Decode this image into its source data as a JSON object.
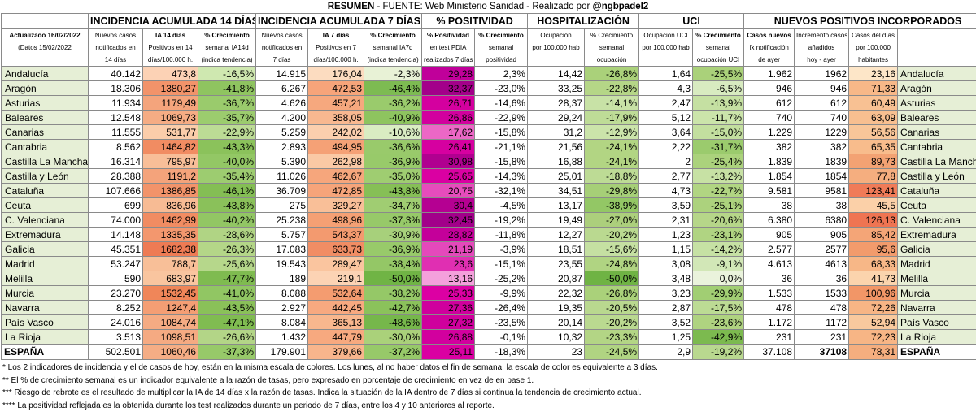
{
  "title": {
    "strong1": "RESUMEN",
    "normal": " - FUENTE: Web Ministerio Sanidad  - Realizado por ",
    "strong2": "@ngbpadel2"
  },
  "groups": {
    "ia14": "INCIDENCIA ACUMULADA 14 DÍAS",
    "ia7": "INCIDENCIA ACUMULADA 7 DÍAS",
    "pos": "% POSITIVIDAD",
    "hosp": "HOSPITALIZACIÓN",
    "uci": "UCI",
    "nuevos": "NUEVOS POSITIVOS INCORPORADOS"
  },
  "subheaders": {
    "line1": [
      "Actualizado 16/02/2022",
      "Nuevos casos",
      "IA 14 días",
      "% Crecimiento",
      "Nuevos casos",
      "IA 7 días",
      "% Crecimiento",
      "% Positividad",
      "% Crecimiento",
      "Ocupación",
      "% Crecimiento",
      "Ocupación UCI",
      "% Crecimiento",
      "Casos nuevos",
      "Incremento casos",
      "Casos del días",
      ""
    ],
    "line2": [
      "(Datos 15/02/2022",
      "notificados en",
      "Positivos en 14",
      "semanal IA14d",
      "notificados en",
      "Positivos en 7",
      "semanal IA7d",
      "en test PDIA",
      "semanal",
      "por 100.000 hab",
      "semanal",
      "por 100.000 hab",
      "semanal",
      "fx notificación",
      "añadidos",
      "por 100.000",
      ""
    ],
    "line3": [
      "",
      "14 días",
      "días/100.000 h.",
      "(indica tendencia)",
      "7 días",
      "días/100.000 h.",
      "(indica tendencia)",
      "realizados 7 días",
      "positividad",
      "",
      "ocupación",
      "",
      "ocupación UCI",
      "de ayer",
      "hoy - ayer",
      "habitantes",
      ""
    ]
  },
  "rows": [
    {
      "name": "Andalucía",
      "v": [
        "40.142",
        "473,8",
        "-16,5%",
        "14.915",
        "176,04",
        "-2,3%",
        "29,28",
        "2,3%",
        "14,42",
        "-26,8%",
        "1,64",
        "-25,5%",
        "1.962",
        "1962",
        "23,16"
      ],
      "bg": [
        "#ffffff",
        "#fcd2b5",
        "#cfe8b0",
        "#ffffff",
        "#fcdcc0",
        "#e8f2d6",
        "#c0009a",
        "#ffffff",
        "#ffffff",
        "#aad17a",
        "#ffffff",
        "#aad17a",
        "#ffffff",
        "#ffffff",
        "#fde6c8"
      ]
    },
    {
      "name": "Aragón",
      "v": [
        "18.306",
        "1380,27",
        "-41,8%",
        "6.267",
        "472,53",
        "-46,4%",
        "32,37",
        "-23,0%",
        "33,25",
        "-22,8%",
        "4,3",
        "-6,5%",
        "946",
        "946",
        "71,33"
      ],
      "bg": [
        "#ffffff",
        "#f2936a",
        "#8fc460",
        "#ffffff",
        "#f6a47a",
        "#7dbb52",
        "#a3008a",
        "#ffffff",
        "#ffffff",
        "#b5d687",
        "#ffffff",
        "#d8ebc0",
        "#ffffff",
        "#ffffff",
        "#f7b888"
      ]
    },
    {
      "name": "Asturias",
      "v": [
        "11.934",
        "1179,49",
        "-36,7%",
        "4.626",
        "457,21",
        "-36,2%",
        "26,71",
        "-14,6%",
        "28,37",
        "-14,1%",
        "2,47",
        "-13,9%",
        "612",
        "612",
        "60,49"
      ],
      "bg": [
        "#ffffff",
        "#f4a47c",
        "#9acb6c",
        "#ffffff",
        "#f6a87e",
        "#9acb6c",
        "#d4009f",
        "#ffffff",
        "#ffffff",
        "#c8e2a6",
        "#ffffff",
        "#c5e0a2",
        "#ffffff",
        "#ffffff",
        "#f8c193"
      ]
    },
    {
      "name": "Baleares",
      "v": [
        "12.548",
        "1069,73",
        "-35,7%",
        "4.200",
        "358,05",
        "-40,9%",
        "26,86",
        "-22,9%",
        "29,24",
        "-17,9%",
        "5,12",
        "-11,7%",
        "740",
        "740",
        "63,09"
      ],
      "bg": [
        "#ffffff",
        "#f5ac84",
        "#9ccc6e",
        "#ffffff",
        "#f8b890",
        "#8ec45f",
        "#d2009e",
        "#ffffff",
        "#ffffff",
        "#bedc97",
        "#ffffff",
        "#cbe4aa",
        "#ffffff",
        "#ffffff",
        "#f8bf90"
      ]
    },
    {
      "name": "Canarias",
      "v": [
        "11.555",
        "531,77",
        "-22,9%",
        "5.259",
        "242,02",
        "-10,6%",
        "17,62",
        "-15,8%",
        "31,2",
        "-12,9%",
        "3,64",
        "-15,0%",
        "1.229",
        "1229",
        "56,56"
      ],
      "bg": [
        "#ffffff",
        "#fbcdaa",
        "#bcdb95",
        "#ffffff",
        "#fbcfae",
        "#d9ecc2",
        "#ec67c6",
        "#ffffff",
        "#ffffff",
        "#cbe4aa",
        "#ffffff",
        "#c3df9f",
        "#ffffff",
        "#ffffff",
        "#f9c699"
      ]
    },
    {
      "name": "Cantabria",
      "v": [
        "8.562",
        "1464,82",
        "-43,3%",
        "2.893",
        "494,95",
        "-36,6%",
        "26,41",
        "-21,1%",
        "21,56",
        "-24,1%",
        "2,22",
        "-31,7%",
        "382",
        "382",
        "65,35"
      ],
      "bg": [
        "#ffffff",
        "#f18c62",
        "#8bc25b",
        "#ffffff",
        "#f5a176",
        "#99ca6b",
        "#d600a0",
        "#ffffff",
        "#ffffff",
        "#b2d583",
        "#ffffff",
        "#9bcb6d",
        "#ffffff",
        "#ffffff",
        "#f8bc8c"
      ]
    },
    {
      "name": "Castilla La Mancha",
      "v": [
        "16.314",
        "795,97",
        "-40,0%",
        "5.390",
        "262,98",
        "-36,9%",
        "30,98",
        "-15,8%",
        "16,88",
        "-24,1%",
        "2",
        "-25,4%",
        "1.839",
        "1839",
        "89,73"
      ],
      "bg": [
        "#ffffff",
        "#f8be98",
        "#93c765",
        "#ffffff",
        "#fac9a5",
        "#98ca6a",
        "#b00090",
        "#ffffff",
        "#ffffff",
        "#b2d583",
        "#ffffff",
        "#abd27c",
        "#ffffff",
        "#ffffff",
        "#f3a273"
      ]
    },
    {
      "name": "Castilla y León",
      "v": [
        "28.388",
        "1191,2",
        "-35,4%",
        "11.026",
        "462,67",
        "-35,0%",
        "25,65",
        "-14,3%",
        "25,01",
        "-18,8%",
        "2,77",
        "-13,2%",
        "1.854",
        "1854",
        "77,8"
      ],
      "bg": [
        "#ffffff",
        "#f4a37b",
        "#9dcc70",
        "#ffffff",
        "#f6a67c",
        "#9fcd71",
        "#da00a2",
        "#ffffff",
        "#ffffff",
        "#bddb95",
        "#ffffff",
        "#c7e1a4",
        "#ffffff",
        "#ffffff",
        "#f5ae7f"
      ]
    },
    {
      "name": "Cataluña",
      "v": [
        "107.666",
        "1386,85",
        "-46,1%",
        "36.709",
        "472,85",
        "-43,8%",
        "20,75",
        "-32,1%",
        "34,51",
        "-29,8%",
        "4,73",
        "-22,7%",
        "9.581",
        "9581",
        "123,41"
      ],
      "bg": [
        "#ffffff",
        "#f2936a",
        "#84be54",
        "#ffffff",
        "#f6a47a",
        "#86bf56",
        "#e64cbc",
        "#ffffff",
        "#ffffff",
        "#a6cf77",
        "#ffffff",
        "#b1d582",
        "#ffffff",
        "#ffffff",
        "#f07b58"
      ]
    },
    {
      "name": "Ceuta",
      "v": [
        "699",
        "836,96",
        "-43,8%",
        "275",
        "329,27",
        "-34,7%",
        "30,4",
        "-4,5%",
        "13,17",
        "-38,9%",
        "3,59",
        "-25,1%",
        "38",
        "38",
        "45,5"
      ],
      "bg": [
        "#ffffff",
        "#f7bb94",
        "#8ac15a",
        "#ffffff",
        "#f9bf98",
        "#a0cd72",
        "#b50092",
        "#ffffff",
        "#ffffff",
        "#93c765",
        "#ffffff",
        "#acd27d",
        "#ffffff",
        "#ffffff",
        "#fbd0a8"
      ]
    },
    {
      "name": "C. Valenciana",
      "v": [
        "74.000",
        "1462,99",
        "-40,2%",
        "25.238",
        "498,96",
        "-37,3%",
        "32,45",
        "-19,2%",
        "19,49",
        "-27,0%",
        "2,31",
        "-20,6%",
        "6.380",
        "6380",
        "126,13"
      ],
      "bg": [
        "#ffffff",
        "#f18c62",
        "#92c664",
        "#ffffff",
        "#f5a074",
        "#97c969",
        "#a2008a",
        "#ffffff",
        "#ffffff",
        "#accf7c",
        "#ffffff",
        "#b6d689",
        "#ffffff",
        "#ffffff",
        "#ef7452"
      ]
    },
    {
      "name": "Extremadura",
      "v": [
        "14.148",
        "1335,35",
        "-28,6%",
        "5.757",
        "543,37",
        "-30,9%",
        "28,82",
        "-11,8%",
        "12,27",
        "-20,2%",
        "1,23",
        "-23,1%",
        "905",
        "905",
        "85,42"
      ],
      "bg": [
        "#ffffff",
        "#f3976e",
        "#b0d484",
        "#ffffff",
        "#f39a6f",
        "#a7d07b",
        "#c4009a",
        "#ffffff",
        "#ffffff",
        "#bad990",
        "#ffffff",
        "#b0d482",
        "#ffffff",
        "#ffffff",
        "#f4a577"
      ]
    },
    {
      "name": "Galicia",
      "v": [
        "45.351",
        "1682,38",
        "-26,3%",
        "17.083",
        "633,73",
        "-36,9%",
        "21,19",
        "-3,9%",
        "18,51",
        "-15,6%",
        "1,15",
        "-14,2%",
        "2.577",
        "2577",
        "95,6"
      ],
      "bg": [
        "#ffffff",
        "#ee7b54",
        "#b4d688",
        "#ffffff",
        "#f18d64",
        "#98ca6a",
        "#e449bb",
        "#ffffff",
        "#ffffff",
        "#c5e0a2",
        "#ffffff",
        "#c6e1a4",
        "#ffffff",
        "#ffffff",
        "#f29b6c"
      ]
    },
    {
      "name": "Madrid",
      "v": [
        "53.247",
        "788,7",
        "-25,6%",
        "19.543",
        "289,47",
        "-38,4%",
        "23,6",
        "-15,1%",
        "23,55",
        "-24,8%",
        "3,08",
        "-9,1%",
        "4.613",
        "4613",
        "68,33"
      ],
      "bg": [
        "#ffffff",
        "#f8bf98",
        "#b6d78b",
        "#ffffff",
        "#fac59f",
        "#94c766",
        "#e02fb2",
        "#ffffff",
        "#ffffff",
        "#b0d482",
        "#ffffff",
        "#d2e7b7",
        "#ffffff",
        "#ffffff",
        "#f7b787"
      ]
    },
    {
      "name": "Melilla",
      "v": [
        "590",
        "683,97",
        "-47,7%",
        "189",
        "219,1",
        "-50,0%",
        "13,16",
        "-25,2%",
        "20,87",
        "-50,0%",
        "3,48",
        "0,0%",
        "36",
        "36",
        "41,73"
      ],
      "bg": [
        "#ffffff",
        "#f9c59f",
        "#7fbb50",
        "#ffffff",
        "#fcd3b4",
        "#70b445",
        "#f4a0dc",
        "#ffffff",
        "#ffffff",
        "#6fb344",
        "#ffffff",
        "#eaf3dc",
        "#ffffff",
        "#ffffff",
        "#fbd4ad"
      ]
    },
    {
      "name": "Murcia",
      "v": [
        "23.270",
        "1532,45",
        "-41,0%",
        "8.088",
        "532,64",
        "-38,2%",
        "25,33",
        "-9,9%",
        "22,32",
        "-26,8%",
        "3,23",
        "-29,9%",
        "1.533",
        "1533",
        "100,96"
      ],
      "bg": [
        "#ffffff",
        "#f08659",
        "#91c663",
        "#ffffff",
        "#f49c70",
        "#95c867",
        "#dc00a3",
        "#ffffff",
        "#ffffff",
        "#aad17a",
        "#ffffff",
        "#a1ce73",
        "#ffffff",
        "#ffffff",
        "#f29667"
      ]
    },
    {
      "name": "Navarra",
      "v": [
        "8.252",
        "1247,4",
        "-43,5%",
        "2.927",
        "442,45",
        "-42,7%",
        "27,36",
        "-26,4%",
        "19,35",
        "-20,5%",
        "2,87",
        "-17,5%",
        "478",
        "478",
        "72,26"
      ],
      "bg": [
        "#ffffff",
        "#f49e74",
        "#8ac159",
        "#ffffff",
        "#f7a980",
        "#8bc25b",
        "#cf009d",
        "#ffffff",
        "#ffffff",
        "#b9d88f",
        "#ffffff",
        "#bcdb94",
        "#ffffff",
        "#ffffff",
        "#f7b585"
      ]
    },
    {
      "name": "País Vasco",
      "v": [
        "24.016",
        "1084,74",
        "-47,1%",
        "8.084",
        "365,13",
        "-48,6%",
        "27,32",
        "-23,5%",
        "20,14",
        "-20,2%",
        "3,52",
        "-23,6%",
        "1.172",
        "1172",
        "52,94"
      ],
      "bg": [
        "#ffffff",
        "#f5ab83",
        "#80bc51",
        "#ffffff",
        "#f8b78e",
        "#76b74b",
        "#cf009d",
        "#ffffff",
        "#ffffff",
        "#bad990",
        "#ffffff",
        "#afd380",
        "#ffffff",
        "#ffffff",
        "#f9c99e"
      ]
    },
    {
      "name": "La Rioja",
      "v": [
        "3.513",
        "1098,51",
        "-26,6%",
        "1.432",
        "447,79",
        "-30,0%",
        "26,88",
        "-0,1%",
        "10,32",
        "-23,3%",
        "1,25",
        "-42,9%",
        "231",
        "231",
        "72,23"
      ],
      "bg": [
        "#ffffff",
        "#f5aa82",
        "#b3d587",
        "#ffffff",
        "#f7a97f",
        "#aad17a",
        "#d2009e",
        "#ffffff",
        "#ffffff",
        "#b3d585",
        "#ffffff",
        "#7cba4f",
        "#ffffff",
        "#ffffff",
        "#f7b585"
      ]
    }
  ],
  "total": {
    "name": "ESPAÑA",
    "v": [
      "502.501",
      "1060,46",
      "-37,3%",
      "179.901",
      "379,66",
      "-37,2%",
      "25,11",
      "-18,3%",
      "23",
      "-24,5%",
      "2,9",
      "-19,2%",
      "37.108",
      "37108",
      "78,31"
    ],
    "bg": [
      "#ffffff",
      "#f5ad85",
      "#97c969",
      "#ffffff",
      "#f8b58c",
      "#97c969",
      "#da00a2",
      "#ffffff",
      "#ffffff",
      "#b0d482",
      "#ffffff",
      "#b9d88f",
      "#ffffff",
      "#ffffff",
      "#f5ae7f"
    ]
  },
  "notes": [
    "* Los 2 indicadores de incidencia y el de casos de hoy, están en la misma escala de colores. Los lunes, al no haber datos el fin de semana, la escala de color es equivalente a 3 días.",
    "** El % de crecimiento semanal es un indicador equivalente a la razón de tasas, pero expresado en porcentaje de crecimiento en vez de en base 1.",
    "*** Riesgo de rebrote es el resultado de multiplicar la IA de 14 días x la razón de tasas. Indica la situación de la IA dentro de 7 días si continua la tendencia de crecimiento actual.",
    "**** La positividad reflejada es la obtenida durante los test realizados durante un periodo de 7 días, entre los 4 y 10 anteriores al reporte."
  ]
}
